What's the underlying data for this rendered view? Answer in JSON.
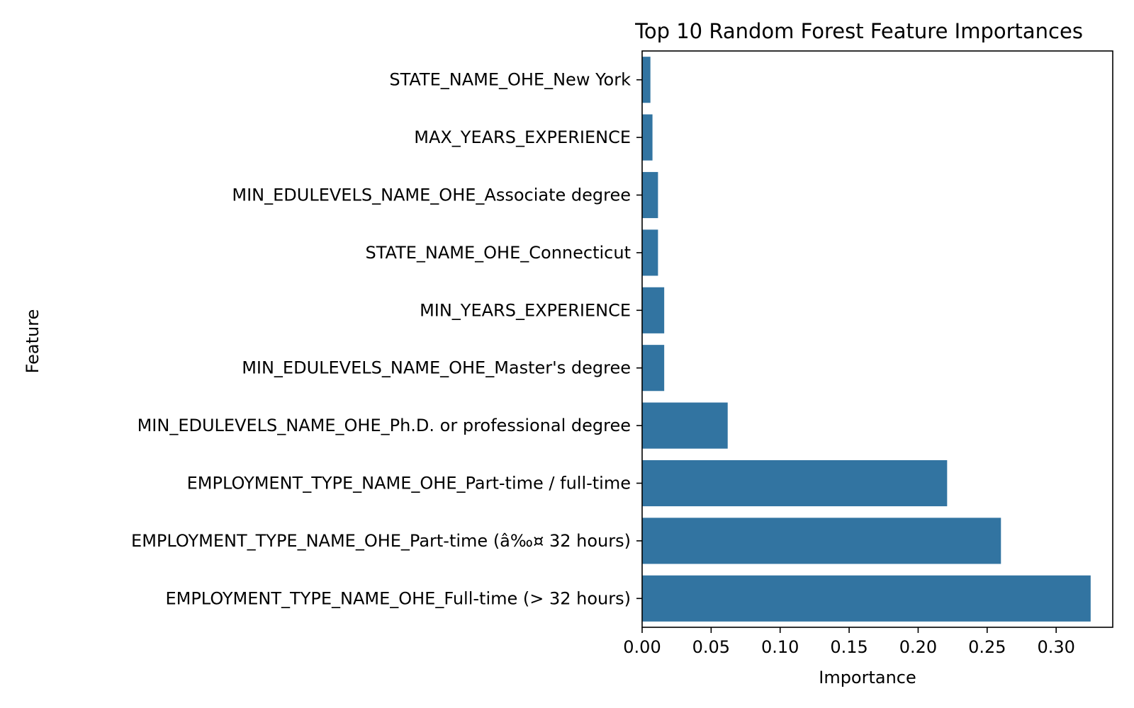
{
  "chart_data": {
    "type": "bar",
    "orientation": "horizontal",
    "title": "Top 10 Random Forest Feature Importances",
    "xlabel": "Importance",
    "ylabel": "Feature",
    "categories": [
      "STATE_NAME_OHE_New York",
      "MAX_YEARS_EXPERIENCE",
      "MIN_EDULEVELS_NAME_OHE_Associate degree",
      "STATE_NAME_OHE_Connecticut",
      "MIN_YEARS_EXPERIENCE",
      "MIN_EDULEVELS_NAME_OHE_Master's degree",
      "MIN_EDULEVELS_NAME_OHE_Ph.D. or professional degree",
      "EMPLOYMENT_TYPE_NAME_OHE_Part-time / full-time",
      "EMPLOYMENT_TYPE_NAME_OHE_Part-time (â‰¤ 32 hours)",
      "EMPLOYMENT_TYPE_NAME_OHE_Full-time (> 32 hours)"
    ],
    "values": [
      0.006,
      0.0075,
      0.0115,
      0.0115,
      0.016,
      0.016,
      0.062,
      0.221,
      0.26,
      0.325
    ],
    "xlim": [
      0,
      0.341
    ],
    "xticks": [
      "0.00",
      "0.05",
      "0.10",
      "0.15",
      "0.20",
      "0.25",
      "0.30"
    ],
    "xtick_values": [
      0,
      0.05,
      0.1,
      0.15,
      0.2,
      0.25,
      0.3
    ],
    "grid": false,
    "bar_color": "#3274a1"
  }
}
